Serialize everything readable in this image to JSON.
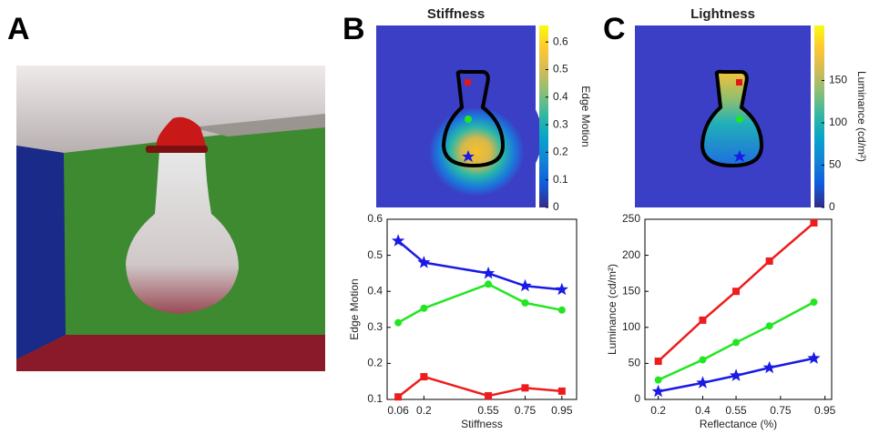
{
  "panel_labels": [
    "A",
    "B",
    "C"
  ],
  "chart_data": [
    {
      "type": "heatmap",
      "title": "Stiffness",
      "colorbar_label": "Edge Motion",
      "clim": [
        0,
        0.66
      ],
      "cticks": [
        0,
        0.1,
        0.2,
        0.3,
        0.4,
        0.5,
        0.6
      ]
    },
    {
      "type": "heatmap",
      "title": "Lightness",
      "colorbar_label": "Luminance (cd/m²)",
      "clim": [
        0,
        215
      ],
      "cticks": [
        0,
        50,
        100,
        150
      ]
    },
    {
      "type": "line",
      "x_label": "Stiffness",
      "y_label": "Edge Motion",
      "x": [
        0.06,
        0.2,
        0.55,
        0.75,
        0.95
      ],
      "xlim": [
        0,
        1.03
      ],
      "xticks": [
        0.06,
        0.2,
        0.55,
        0.75,
        0.95
      ],
      "ylim": [
        0.1,
        0.6
      ],
      "yticks": [
        0.1,
        0.2,
        0.3,
        0.4,
        0.5,
        0.6
      ],
      "series": [
        {
          "marker": "star",
          "color": "#1a1ae6",
          "values": [
            0.54,
            0.48,
            0.45,
            0.415,
            0.405
          ]
        },
        {
          "marker": "circle",
          "color": "#22e622",
          "values": [
            0.313,
            0.353,
            0.42,
            0.368,
            0.348
          ]
        },
        {
          "marker": "square",
          "color": "#ee1c1c",
          "values": [
            0.107,
            0.163,
            0.11,
            0.132,
            0.123
          ]
        }
      ]
    },
    {
      "type": "line",
      "x_label": "Reflectance (%)",
      "y_label": "Luminance (cd/m²)",
      "x": [
        0.2,
        0.4,
        0.55,
        0.7,
        0.9
      ],
      "xlim": [
        0.14,
        0.98
      ],
      "xticks": [
        0.2,
        0.4,
        0.55,
        0.75,
        0.95
      ],
      "ylim": [
        0,
        250
      ],
      "yticks": [
        0,
        50,
        100,
        150,
        200,
        250
      ],
      "series": [
        {
          "marker": "square",
          "color": "#ee1c1c",
          "values": [
            53,
            110,
            150,
            192,
            245
          ]
        },
        {
          "marker": "circle",
          "color": "#22e622",
          "values": [
            27,
            55,
            79,
            102,
            135
          ]
        },
        {
          "marker": "star",
          "color": "#1a1ae6",
          "values": [
            11,
            23,
            33,
            44,
            57
          ]
        }
      ]
    }
  ]
}
